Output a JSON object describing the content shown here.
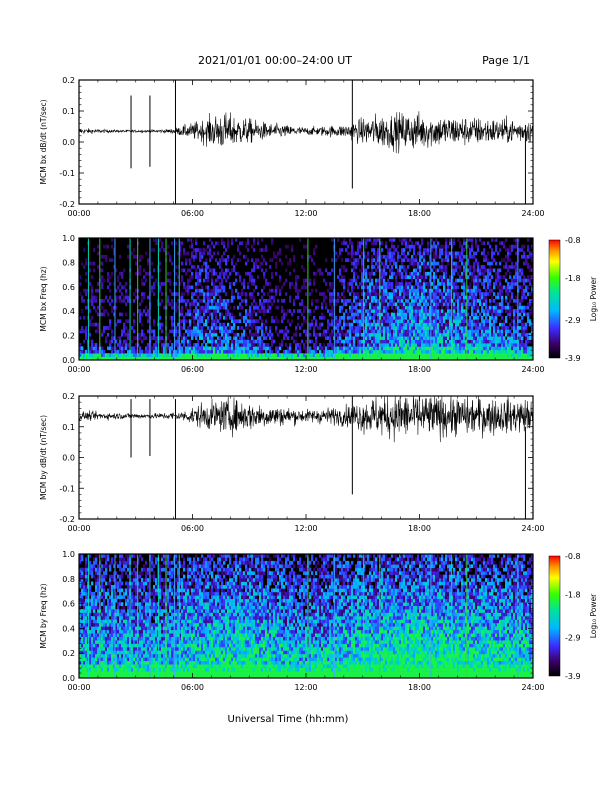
{
  "header": {
    "title": "2021/01/01  00:00–24:00 UT",
    "page": "Page 1/1"
  },
  "xlabel": "Universal Time (hh:mm)",
  "chart_data": [
    {
      "type": "line",
      "ylabel": "MCM bx dB/dt (nT/sec)",
      "xlim": [
        0,
        24
      ],
      "ylim": [
        -0.2,
        0.2
      ],
      "yticks": [
        "-0.2",
        "-0.1",
        "0.0",
        "0.1",
        "0.2"
      ],
      "xticks": [
        "00:00",
        "06:00",
        "12:00",
        "18:00",
        "24:00"
      ],
      "baseline": 0.035,
      "noise_envelope": [
        [
          0,
          0.01
        ],
        [
          1,
          0.006
        ],
        [
          2,
          0.004
        ],
        [
          4,
          0.004
        ],
        [
          5,
          0.008
        ],
        [
          6.5,
          0.035
        ],
        [
          7.5,
          0.06
        ],
        [
          8.5,
          0.045
        ],
        [
          10,
          0.025
        ],
        [
          12,
          0.012
        ],
        [
          14,
          0.02
        ],
        [
          15.5,
          0.05
        ],
        [
          17.5,
          0.06
        ],
        [
          19,
          0.05
        ],
        [
          20.5,
          0.045
        ],
        [
          22,
          0.04
        ],
        [
          24,
          0.035
        ]
      ],
      "spikes": [
        [
          2.75,
          0.15,
          -0.085
        ],
        [
          3.75,
          0.15,
          -0.08
        ],
        [
          5.1,
          0.2,
          -0.2
        ],
        [
          14.45,
          0.2,
          -0.15
        ],
        [
          23.6,
          0.055,
          -0.2
        ]
      ]
    },
    {
      "type": "heatmap",
      "ylabel": "MCM bx Freq (hz)",
      "xlim": [
        0,
        24
      ],
      "ylim": [
        0.0,
        1.0
      ],
      "yticks": [
        "0.0",
        "0.2",
        "0.4",
        "0.6",
        "0.8",
        "1.0"
      ],
      "xticks": [
        "00:00",
        "06:00",
        "12:00",
        "18:00",
        "24:00"
      ],
      "colorbar": {
        "label": "Log₁₀ Power",
        "ticks": [
          "-0.8",
          "-1.8",
          "-2.9",
          "-3.9"
        ],
        "range": [
          -3.9,
          -0.8
        ]
      },
      "activity": [
        [
          0,
          0.3
        ],
        [
          5,
          0.35
        ],
        [
          6.5,
          0.55
        ],
        [
          9,
          0.45
        ],
        [
          11,
          0.3
        ],
        [
          13,
          0.35
        ],
        [
          15,
          0.6
        ],
        [
          18,
          0.7
        ],
        [
          21,
          0.6
        ],
        [
          24,
          0.5
        ]
      ],
      "vertical_lines": [
        0.5,
        1.1,
        1.9,
        2.7,
        3.1,
        3.75,
        4.2,
        4.6,
        5.05,
        5.3,
        12.1,
        13.5,
        15.05,
        15.9,
        18.6,
        19.7,
        20.5,
        23.2
      ]
    },
    {
      "type": "line",
      "ylabel": "MCM by dB/dt (nT/sec)",
      "xlim": [
        0,
        24
      ],
      "ylim": [
        -0.2,
        0.2
      ],
      "yticks": [
        "-0.2",
        "-0.1",
        "0.0",
        "0.1",
        "0.2"
      ],
      "xticks": [
        "00:00",
        "06:00",
        "12:00",
        "18:00",
        "24:00"
      ],
      "baseline": 0.135,
      "noise_envelope": [
        [
          0,
          0.015
        ],
        [
          2,
          0.01
        ],
        [
          4,
          0.008
        ],
        [
          5.5,
          0.015
        ],
        [
          6.5,
          0.04
        ],
        [
          8,
          0.055
        ],
        [
          10,
          0.035
        ],
        [
          12,
          0.02
        ],
        [
          14,
          0.03
        ],
        [
          15.5,
          0.06
        ],
        [
          17,
          0.075
        ],
        [
          19,
          0.065
        ],
        [
          21,
          0.06
        ],
        [
          24,
          0.05
        ]
      ],
      "spikes": [
        [
          2.75,
          0.19,
          0.0
        ],
        [
          3.75,
          0.19,
          0.005
        ],
        [
          5.1,
          0.19,
          -0.2
        ],
        [
          14.45,
          0.2,
          -0.12
        ],
        [
          23.6,
          0.1,
          -0.2
        ]
      ]
    },
    {
      "type": "heatmap",
      "ylabel": "MCM by Freq (hz)",
      "xlim": [
        0,
        24
      ],
      "ylim": [
        0.0,
        1.0
      ],
      "yticks": [
        "0.0",
        "0.2",
        "0.4",
        "0.6",
        "0.8",
        "1.0"
      ],
      "xticks": [
        "00:00",
        "06:00",
        "12:00",
        "18:00",
        "24:00"
      ],
      "colorbar": {
        "label": "Log₁₀ Power",
        "ticks": [
          "-0.8",
          "-1.8",
          "-2.9",
          "-3.9"
        ],
        "range": [
          -3.9,
          -0.8
        ]
      },
      "activity": [
        [
          0,
          0.75
        ],
        [
          4,
          0.7
        ],
        [
          6,
          0.8
        ],
        [
          9,
          0.85
        ],
        [
          12,
          0.7
        ],
        [
          15,
          0.85
        ],
        [
          18,
          0.9
        ],
        [
          21,
          0.85
        ],
        [
          24,
          0.8
        ]
      ],
      "vertical_lines": [
        0.5,
        1.1,
        1.9,
        2.7,
        3.1,
        3.75,
        4.2,
        4.6,
        5.05,
        5.3,
        12.1,
        13.5,
        15.05,
        15.9,
        18.6,
        19.7,
        20.5,
        23.2
      ]
    }
  ]
}
